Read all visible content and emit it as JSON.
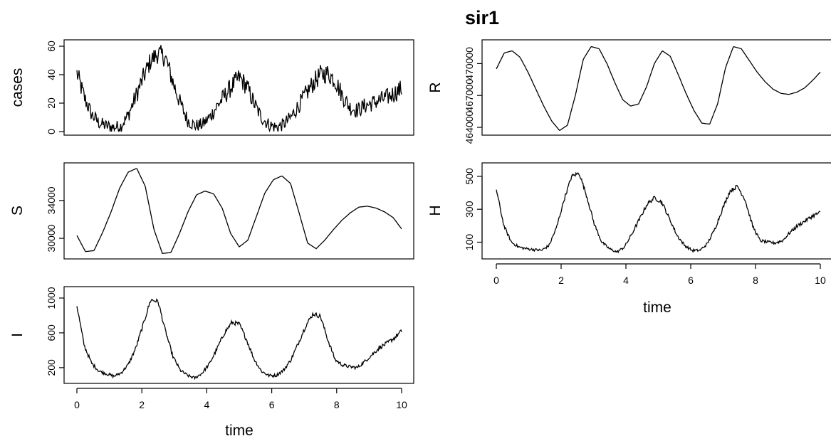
{
  "chart_data": {
    "type": "line",
    "title": "sir1",
    "xlabel": "time",
    "xlim": [
      0,
      10
    ],
    "xticks": [
      0,
      2,
      4,
      6,
      8,
      10
    ],
    "panels": [
      {
        "name": "cases",
        "ylabel": "cases",
        "ylim": [
          0,
          62
        ],
        "yticks": [
          0,
          20,
          40,
          60
        ],
        "noise": 7,
        "values": [
          41,
          24,
          12,
          6,
          4,
          3,
          4,
          12,
          25,
          38,
          50,
          55,
          52,
          35,
          20,
          8,
          4,
          5,
          10,
          18,
          25,
          32,
          38,
          32,
          20,
          10,
          5,
          3,
          5,
          10,
          18,
          26,
          34,
          40,
          41,
          36,
          25,
          17,
          15,
          18,
          20,
          22,
          24,
          27,
          30
        ]
      },
      {
        "name": "S",
        "ylabel": "S",
        "ylim": [
          28200,
          37600
        ],
        "yticks": [
          30000,
          34000
        ],
        "noise": 0,
        "values": [
          30300,
          28600,
          28700,
          30600,
          32800,
          35300,
          37000,
          37400,
          35500,
          31000,
          28400,
          28500,
          30500,
          32800,
          34600,
          35000,
          34700,
          33200,
          30500,
          29100,
          29800,
          32300,
          34800,
          36200,
          36600,
          35800,
          32700,
          29500,
          28900,
          29800,
          30900,
          31900,
          32700,
          33300,
          33400,
          33200,
          32800,
          32200,
          31000
        ]
      },
      {
        "name": "I",
        "ylabel": "I",
        "ylim": [
          60,
          1090
        ],
        "yticks": [
          200,
          600,
          1000
        ],
        "noise": 25,
        "values": [
          910,
          450,
          250,
          160,
          130,
          100,
          140,
          240,
          430,
          700,
          980,
          960,
          620,
          330,
          170,
          110,
          80,
          140,
          250,
          420,
          600,
          720,
          700,
          520,
          300,
          160,
          110,
          110,
          170,
          290,
          480,
          680,
          820,
          790,
          520,
          290,
          230,
          210,
          200,
          270,
          350,
          430,
          480,
          540,
          620
        ]
      },
      {
        "name": "R",
        "ylabel": "R",
        "ylim": [
          463600,
          471900
        ],
        "yticks": [
          464000,
          467000,
          470000
        ],
        "noise": 0,
        "values": [
          469500,
          471000,
          471200,
          470600,
          469200,
          467600,
          466000,
          464600,
          463700,
          464200,
          467000,
          470400,
          471600,
          471400,
          470000,
          468200,
          466600,
          466000,
          466200,
          467800,
          470000,
          471200,
          470700,
          469000,
          467200,
          465600,
          464400,
          464300,
          466200,
          469600,
          471600,
          471400,
          470300,
          469200,
          468300,
          467600,
          467200,
          467100,
          467300,
          467700,
          468400,
          469200
        ]
      },
      {
        "name": "H",
        "ylabel": "H",
        "ylim": [
          20,
          560
        ],
        "yticks": [
          100,
          300,
          500
        ],
        "noise": 12,
        "values": [
          420,
          200,
          100,
          70,
          60,
          55,
          50,
          80,
          190,
          360,
          500,
          520,
          380,
          210,
          100,
          60,
          40,
          70,
          150,
          240,
          330,
          370,
          340,
          240,
          140,
          80,
          50,
          50,
          90,
          180,
          300,
          410,
          440,
          360,
          200,
          110,
          100,
          95,
          110,
          160,
          200,
          230,
          260,
          280
        ]
      }
    ]
  }
}
